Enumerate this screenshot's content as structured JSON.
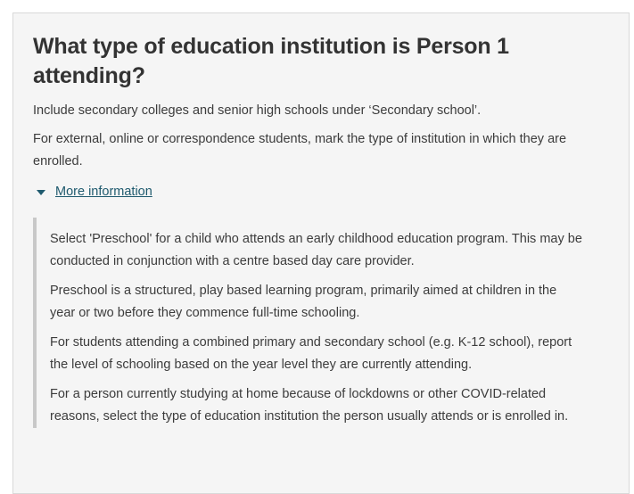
{
  "question": {
    "title": "What type of education institution is Person 1\nattending?",
    "instructions": [
      "Include secondary colleges and senior high schools under ‘Secondary school’.",
      "For external, online or correspondence students, mark the type of institution in which they are\nenrolled."
    ]
  },
  "more_information": {
    "label": "More information",
    "expanded": true,
    "icon": "triangle-down-icon",
    "panel_paragraphs": [
      "Select 'Preschool' for a child who attends an early childhood education program. This may be\nconducted in conjunction with a centre based day care provider.",
      "Preschool is a structured, play based learning program, primarily aimed at children in the\nyear or two before they commence full-time schooling.",
      "For students attending a combined primary and secondary school (e.g. K-12 school), report\nthe level of schooling based on the year level they are currently attending.",
      "For a person currently studying at home because of lockdowns or other COVID-related\nreasons, select the type of education institution the person usually attends or is enrolled in."
    ]
  },
  "colors": {
    "link": "#1f5a6e",
    "card_background": "#f5f5f5",
    "card_border": "#d9d9d9",
    "panel_bar": "#c8c8c8",
    "heading_text": "#333333",
    "body_text": "#3c3c3c"
  }
}
